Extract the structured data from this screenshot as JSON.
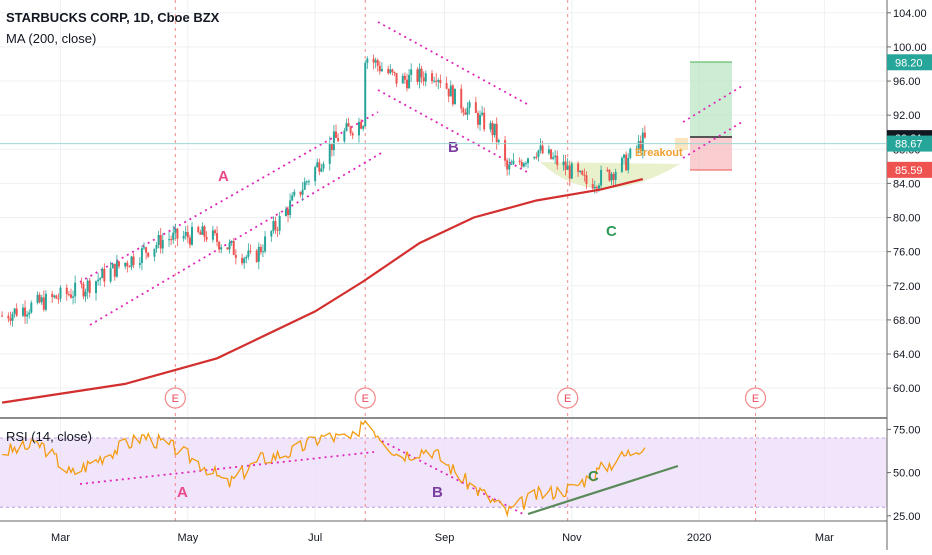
{
  "header": {
    "title": "STARBUCKS CORP, 1D, Cboe BZX",
    "indicator": "MA (200, close)"
  },
  "rsi_panel": {
    "title": "RSI (14, close)"
  },
  "chart_data": [
    {
      "type": "candlestick",
      "panel": "price",
      "title": "STARBUCKS CORP, 1D, Cboe BZX",
      "x_tick_labels": [
        "Mar",
        "May",
        "Jul",
        "Sep",
        "Nov",
        "2020",
        "Mar"
      ],
      "y_tick_labels": [
        "104.00",
        "100.00",
        "96.00",
        "92.00",
        "88.00",
        "84.00",
        "80.00",
        "76.00",
        "72.00",
        "68.00",
        "64.00",
        "60.00"
      ],
      "ylim": [
        56.5,
        105.5
      ],
      "price_trend": {
        "x": [
          "2019-02-01",
          "2019-03-10",
          "2019-04-20",
          "2019-05-10",
          "2019-06-01",
          "2019-06-15",
          "2019-07-10",
          "2019-07-24",
          "2019-07-25",
          "2019-08-10",
          "2019-08-28",
          "2019-09-06",
          "2019-09-25",
          "2019-10-01",
          "2019-10-15",
          "2019-10-28",
          "2019-11-08",
          "2019-11-18",
          "2019-11-27",
          "2019-12-05"
        ],
        "y": [
          68.5,
          71.5,
          77.5,
          78.0,
          75.0,
          80.0,
          89.0,
          91.5,
          99.0,
          96.0,
          97.0,
          94.0,
          90.0,
          85.5,
          88.0,
          86.0,
          84.0,
          85.0,
          86.5,
          89.0
        ]
      },
      "ma200": {
        "name": "MA (200, close)",
        "x": [
          "2019-02-01",
          "2019-04-01",
          "2019-05-15",
          "2019-07-01",
          "2019-07-24",
          "2019-08-20",
          "2019-09-15",
          "2019-10-15",
          "2019-11-15",
          "2019-12-05"
        ],
        "y": [
          58.3,
          60.5,
          63.5,
          69.0,
          72.5,
          77.0,
          80.0,
          82.0,
          83.3,
          84.5
        ]
      },
      "price_labels": [
        {
          "text": "98.20",
          "value": 98.2,
          "color": "#26a69a"
        },
        {
          "text": "89.31",
          "value": 89.31,
          "color": "#131722"
        },
        {
          "text": "88.67",
          "value": 88.67,
          "color": "#26a69a"
        },
        {
          "text": "85.59",
          "value": 85.59,
          "color": "#ef5350"
        }
      ],
      "annotations": [
        "A",
        "B",
        "C",
        "Breakout"
      ],
      "earnings_markers": [
        "E",
        "E",
        "E",
        "E"
      ],
      "trade_box": {
        "target": 98.2,
        "entry": 89.31,
        "stop": 85.59
      }
    },
    {
      "type": "line",
      "panel": "indicator",
      "title": "RSI (14, close)",
      "y_tick_labels": [
        "75.00",
        "50.00",
        "25.00"
      ],
      "ylim": [
        22,
        81
      ],
      "band": [
        30,
        70
      ],
      "rsi": {
        "x": [
          "2019-02-01",
          "2019-02-20",
          "2019-03-06",
          "2019-03-25",
          "2019-04-10",
          "2019-04-25",
          "2019-05-10",
          "2019-05-20",
          "2019-06-05",
          "2019-06-20",
          "2019-07-05",
          "2019-07-22",
          "2019-07-24",
          "2019-08-10",
          "2019-08-25",
          "2019-09-10",
          "2019-09-25",
          "2019-10-01",
          "2019-10-15",
          "2019-11-01",
          "2019-11-15",
          "2019-12-05"
        ],
        "y": [
          62,
          66,
          49,
          62,
          71,
          64,
          53,
          43,
          58,
          62,
          71,
          69,
          82,
          60,
          64,
          46,
          33,
          27,
          37,
          41,
          52,
          66
        ]
      },
      "annotations": [
        "A",
        "B",
        "C"
      ]
    }
  ]
}
